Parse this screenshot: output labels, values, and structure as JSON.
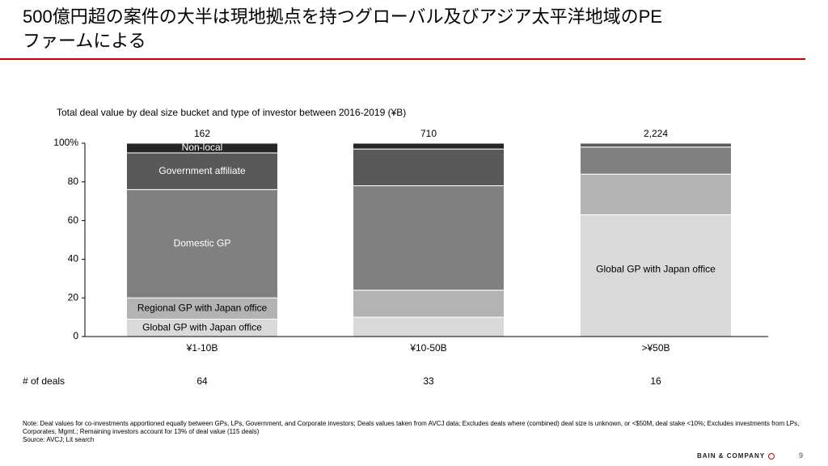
{
  "title": [
    "500億円超の案件の大半は現地拠点を持つグローバル及びアジア太平洋地域のPE",
    "ファームによる"
  ],
  "chart_data": {
    "type": "stacked_bar",
    "title": "Total deal value by deal size bucket and type of investor between 2016-2019 (¥B)",
    "categories": [
      "¥1-10B",
      "¥10-50B",
      ">¥50B"
    ],
    "totals": [
      {
        "value": 162,
        "label": "162"
      },
      {
        "value": 710,
        "label": "710"
      },
      {
        "value": 2224,
        "label": "2,224"
      }
    ],
    "series": [
      {
        "name": "Global GP with Japan office",
        "color": "#d9d9d9",
        "values": [
          9,
          10,
          63
        ]
      },
      {
        "name": "Regional GP with Japan office",
        "color": "#b3b3b3",
        "values": [
          11,
          14,
          21
        ]
      },
      {
        "name": "Domestic GP",
        "color": "#808080",
        "values": [
          56,
          54,
          14
        ]
      },
      {
        "name": "Government affiliate",
        "color": "#595959",
        "values": [
          19,
          19,
          2
        ]
      },
      {
        "name": "Non-local",
        "color": "#262626",
        "values": [
          5,
          3,
          0
        ]
      }
    ],
    "ylim": [
      0,
      100
    ],
    "yticks": [
      0,
      20,
      40,
      60,
      80,
      {
        "value": 100,
        "label": "100%"
      }
    ],
    "deals_label": "# of deals",
    "deals": [
      64,
      33,
      16
    ]
  },
  "notes": "Note: Deal values for co-investments apportioned equally between GPs, LPs, Government, and Corporate investors; Deals values taken from AVCJ data; Excludes deals where (combined) deal size is unknown, or <$50M, deal stake <10%; Excludes investments from LPs, Corporates, Mgmt.; Remaining investors account for 13% of deal value (115 deals)",
  "source": "Source: AVCJ; Lit search",
  "footer": "BAIN & COMPANY",
  "page_number": 9
}
